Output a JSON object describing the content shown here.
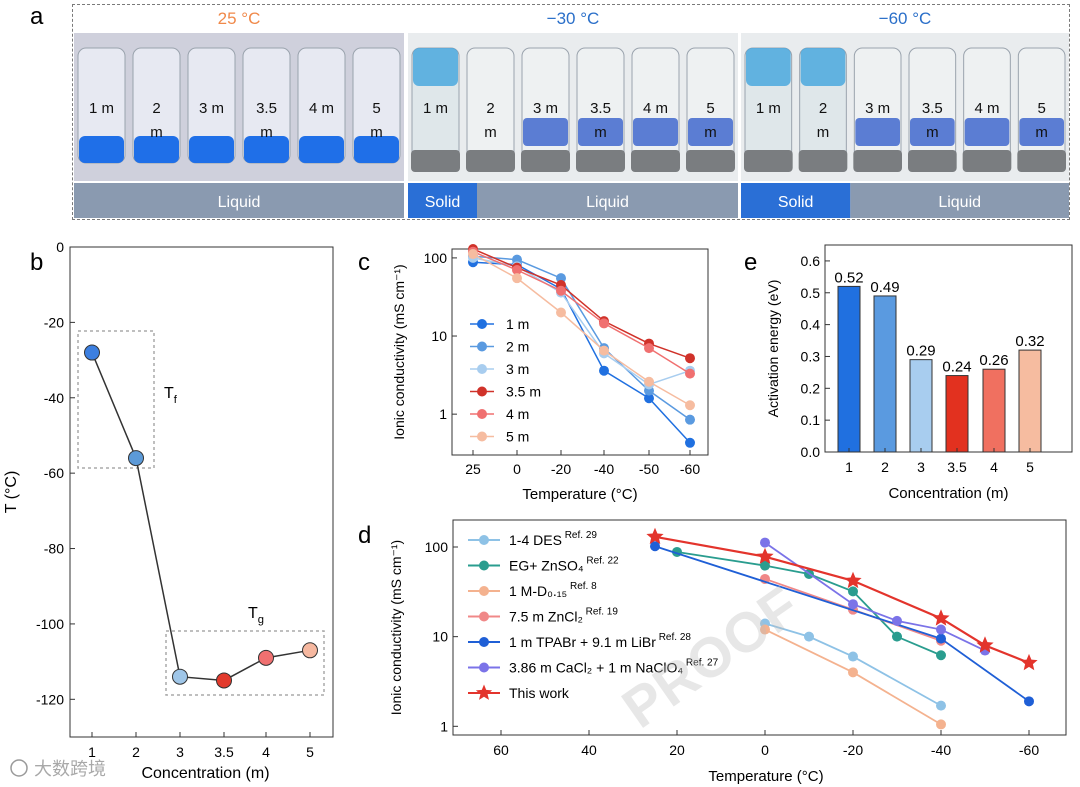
{
  "panel_a": {
    "letter": "a",
    "groups": [
      {
        "temperature": "25 °C",
        "temp_color": "#f0894a",
        "sample_labels": [
          "1 m",
          "2\nm",
          "3 m",
          "3.5\nm",
          "4 m",
          "5\nm"
        ],
        "blue_from": 0,
        "frozen_count": 0,
        "states": [
          {
            "label": "Liquid",
            "color": "#8a9ab0"
          }
        ]
      },
      {
        "temperature": "−30 °C",
        "temp_color": "#2a6fc9",
        "sample_labels": [
          "1 m",
          "2\nm",
          "3 m",
          "3.5\nm",
          "4 m",
          "5\nm"
        ],
        "blue_from": 2,
        "frozen_count": 1,
        "states": [
          {
            "label": "Solid",
            "color": "#2a6fd6"
          },
          {
            "label": "Liquid",
            "color": "#8a9ab0"
          }
        ]
      },
      {
        "temperature": "−60 °C",
        "temp_color": "#2a6fc9",
        "sample_labels": [
          "1 m",
          "2\nm",
          "3 m",
          "3.5\nm",
          "4 m",
          "5\nm"
        ],
        "blue_from": 2,
        "frozen_count": 2,
        "states": [
          {
            "label": "Solid",
            "color": "#2a6fd6"
          },
          {
            "label": "Liquid",
            "color": "#8a9ab0"
          }
        ]
      }
    ]
  },
  "chart_data": [
    {
      "panel": "b",
      "type": "line",
      "title": "",
      "xlabel": "Concentration (m)",
      "ylabel": "T (°C)",
      "categories": [
        "1",
        "2",
        "3",
        "3.5",
        "4",
        "5"
      ],
      "values": [
        -28,
        -56,
        -114,
        -115,
        -109,
        -107
      ],
      "point_colors": [
        "#3c7fe0",
        "#5c9ad8",
        "#9fc6e8",
        "#e23a2c",
        "#f07070",
        "#f6b8a0"
      ],
      "ylim": [
        -130,
        0
      ],
      "yticks": [
        0,
        -20,
        -40,
        -60,
        -80,
        -100,
        -120
      ],
      "yticklabels": [
        "0",
        "-20",
        "-40",
        "-60",
        "-80",
        "-100",
        "-120"
      ],
      "annotations": [
        {
          "text": "T",
          "sub": "f",
          "group": "freezing"
        },
        {
          "text": "T",
          "sub": "g",
          "group": "glass transition"
        }
      ]
    },
    {
      "panel": "c",
      "type": "line",
      "xlabel": "Temperature (°C)",
      "ylabel": "Ionic conductivity (mS cm⁻¹)",
      "yscale": "log",
      "ylim": [
        0.3,
        130
      ],
      "categories": [
        "25",
        "0",
        "-20",
        "-40",
        "-50",
        "-60"
      ],
      "yticklabels": [
        "100",
        "10",
        "1"
      ],
      "series": [
        {
          "name": "1 m",
          "color": "#2070e0",
          "values": [
            88,
            82,
            40,
            3.6,
            1.6,
            0.43
          ]
        },
        {
          "name": "2 m",
          "color": "#5a9ae0",
          "values": [
            105,
            95,
            55,
            7.0,
            2.0,
            0.85
          ]
        },
        {
          "name": "3 m",
          "color": "#a8cdef",
          "values": [
            100,
            78,
            36,
            6.0,
            2.4,
            3.6
          ]
        },
        {
          "name": "3.5 m",
          "color": "#d0322a",
          "values": [
            130,
            75,
            45,
            15.5,
            8.0,
            5.2
          ]
        },
        {
          "name": "4 m",
          "color": "#f07070",
          "values": [
            120,
            70,
            38,
            14.5,
            7.0,
            3.3
          ]
        },
        {
          "name": "5 m",
          "color": "#f6bca0",
          "values": [
            112,
            55,
            20,
            6.5,
            2.6,
            1.3
          ]
        }
      ]
    },
    {
      "panel": "e",
      "type": "bar",
      "xlabel": "Concentration (m)",
      "ylabel": "Activation energy (eV)",
      "categories": [
        "1",
        "2",
        "3",
        "3.5",
        "4",
        "5"
      ],
      "values": [
        0.52,
        0.49,
        0.29,
        0.24,
        0.26,
        0.32
      ],
      "value_labels": [
        "0.52",
        "0.49",
        "0.29",
        "0.24",
        "0.26",
        "0.32"
      ],
      "colors": [
        "#2070e0",
        "#5a9ae0",
        "#a8cdef",
        "#e2311f",
        "#f07060",
        "#f6bca0"
      ],
      "ylim": [
        0,
        0.65
      ],
      "yticks": [
        0.0,
        0.1,
        0.2,
        0.3,
        0.4,
        0.5,
        0.6
      ],
      "yticklabels": [
        "0.0",
        "0.1",
        "0.2",
        "0.3",
        "0.4",
        "0.5",
        "0.6"
      ]
    },
    {
      "panel": "d",
      "type": "line",
      "xlabel": "Temperature (°C)",
      "ylabel": "Ionic conductivity (mS cm⁻¹)",
      "yscale": "log",
      "ylim": [
        0.8,
        200
      ],
      "xlim": [
        70,
        -65
      ],
      "xticks": [
        60,
        40,
        20,
        0,
        -20,
        -40,
        -60
      ],
      "xticklabels": [
        "60",
        "40",
        "20",
        "0",
        "-20",
        "-40",
        "-60"
      ],
      "yticklabels": [
        "100",
        "10",
        "1"
      ],
      "series": [
        {
          "name": "1-4 DES",
          "ref": "Ref. 29",
          "color": "#8ec2e6",
          "marker": "circle",
          "points": [
            [
              0,
              14
            ],
            [
              -10,
              10
            ],
            [
              -20,
              6
            ],
            [
              -40,
              1.7
            ]
          ]
        },
        {
          "name": "EG+ ZnSO₄",
          "ref": "Ref. 22",
          "color": "#2a9d8f",
          "marker": "circle",
          "points": [
            [
              20,
              88
            ],
            [
              0,
              62
            ],
            [
              -10,
              50
            ],
            [
              -20,
              32
            ],
            [
              -30,
              10
            ],
            [
              -40,
              6.2
            ]
          ]
        },
        {
          "name": "1 M-D₀.₁₅",
          "ref": "Ref. 8",
          "color": "#f4b28f",
          "marker": "circle",
          "points": [
            [
              0,
              12
            ],
            [
              -20,
              4
            ],
            [
              -40,
              1.05
            ]
          ]
        },
        {
          "name": "7.5 m ZnCl₂",
          "ref": "Ref. 19",
          "color": "#f08888",
          "marker": "circle",
          "points": [
            [
              0,
              44
            ],
            [
              -20,
              20
            ],
            [
              -40,
              9
            ]
          ]
        },
        {
          "name": "1 m TPABr + 9.1 m LiBr",
          "ref": "Ref. 28",
          "color": "#1f5fd6",
          "marker": "circle",
          "points": [
            [
              25,
              102
            ],
            [
              -40,
              9.5
            ],
            [
              -60,
              1.9
            ]
          ]
        },
        {
          "name": "3.86 m CaCl₂ + 1 m NaClO₄",
          "ref": "Ref. 27",
          "color": "#7b73e8",
          "marker": "circle",
          "points": [
            [
              0,
              112
            ],
            [
              -20,
              23
            ],
            [
              -30,
              15
            ],
            [
              -40,
              12
            ],
            [
              -50,
              7
            ]
          ]
        },
        {
          "name": "This work",
          "ref": "",
          "color": "#e3342c",
          "marker": "star",
          "points": [
            [
              25,
              130
            ],
            [
              0,
              78
            ],
            [
              -20,
              42
            ],
            [
              -40,
              16
            ],
            [
              -50,
              8
            ],
            [
              -60,
              5.1
            ]
          ]
        }
      ]
    }
  ],
  "panel_letters": {
    "b": "b",
    "c": "c",
    "d": "d",
    "e": "e"
  },
  "watermarks": {
    "proof": "PROOF",
    "corner": "大数跨境"
  }
}
